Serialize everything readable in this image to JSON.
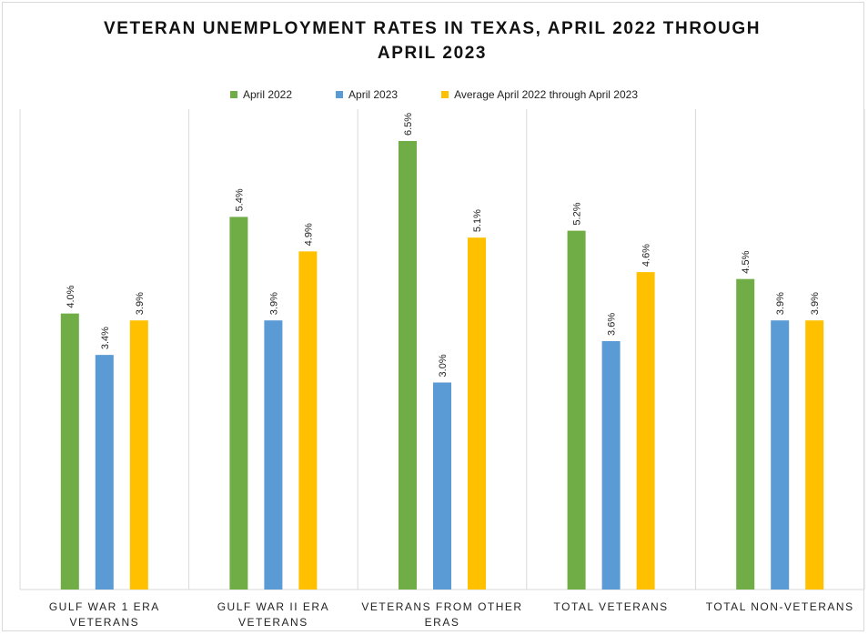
{
  "chart_data": {
    "type": "bar",
    "title": "VETERAN UNEMPLOYMENT RATES IN TEXAS, APRIL 2022 THROUGH APRIL 2023",
    "categories": [
      [
        "GULF WAR 1 ERA",
        "VETERANS"
      ],
      [
        "GULF WAR II ERA",
        "VETERANS"
      ],
      [
        "VETERANS FROM OTHER",
        "ERAS"
      ],
      [
        "TOTAL VETERANS"
      ],
      [
        "TOTAL NON-VETERANS"
      ]
    ],
    "series": [
      {
        "name": "April 2022",
        "color": "#70ad47",
        "values": [
          4.0,
          5.4,
          6.5,
          5.2,
          4.5
        ],
        "labels": [
          "4.0%",
          "5.4%",
          "6.5%",
          "5.2%",
          "4.5%"
        ]
      },
      {
        "name": "April 2023",
        "color": "#5b9bd5",
        "values": [
          3.4,
          3.9,
          3.0,
          3.6,
          3.9
        ],
        "labels": [
          "3.4%",
          "3.9%",
          "3.0%",
          "3.6%",
          "3.9%"
        ]
      },
      {
        "name": "Average April 2022 through April 2023",
        "color": "#ffc000",
        "values": [
          3.9,
          4.9,
          5.1,
          4.6,
          3.9
        ],
        "labels": [
          "3.9%",
          "4.9%",
          "5.1%",
          "4.6%",
          "3.9%"
        ]
      }
    ],
    "legend_position": "top",
    "grid": "vertical category separators",
    "ylim": [
      0,
      6.5
    ]
  }
}
